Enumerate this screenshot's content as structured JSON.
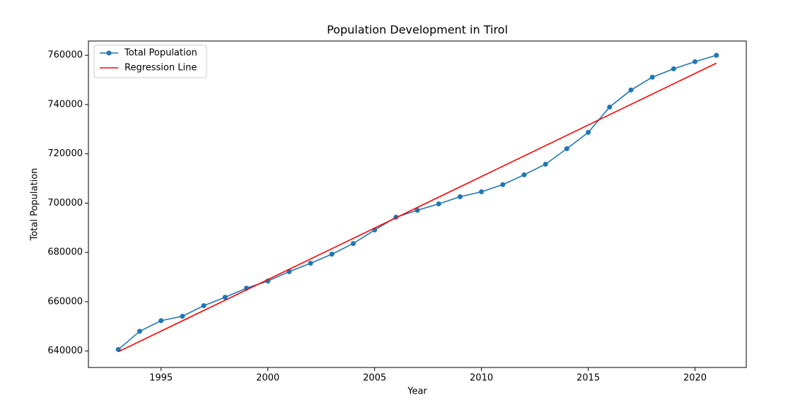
{
  "chart_data": {
    "type": "line",
    "title": "Population Development in Tirol",
    "xlabel": "Year",
    "ylabel": "Total Population",
    "x": [
      1993,
      1994,
      1995,
      1996,
      1997,
      1998,
      1999,
      2000,
      2001,
      2002,
      2003,
      2004,
      2005,
      2006,
      2007,
      2008,
      2009,
      2010,
      2011,
      2012,
      2013,
      2014,
      2015,
      2016,
      2017,
      2018,
      2019,
      2020,
      2021
    ],
    "series": [
      {
        "name": "Total Population",
        "color": "#1f77b4",
        "marker": true,
        "values": [
          640600,
          648000,
          652300,
          654100,
          658400,
          661800,
          665500,
          668400,
          672200,
          675600,
          679300,
          683600,
          689100,
          694300,
          697100,
          699700,
          702600,
          704600,
          707500,
          711500,
          715800,
          722100,
          728700,
          739000,
          745900,
          751100,
          754500,
          757400,
          760000
        ]
      },
      {
        "name": "Regression Line",
        "color": "#ff0000",
        "marker": false,
        "x": [
          1993,
          2021
        ],
        "values": [
          639700,
          756800
        ]
      }
    ],
    "xlim": [
      1991.6,
      2022.4
    ],
    "xticks": [
      1995,
      2000,
      2005,
      2010,
      2015,
      2020
    ],
    "ylim": [
      633300,
      765800
    ],
    "yticks": [
      640000,
      660000,
      680000,
      700000,
      720000,
      740000,
      760000
    ],
    "legend": "upper left"
  }
}
